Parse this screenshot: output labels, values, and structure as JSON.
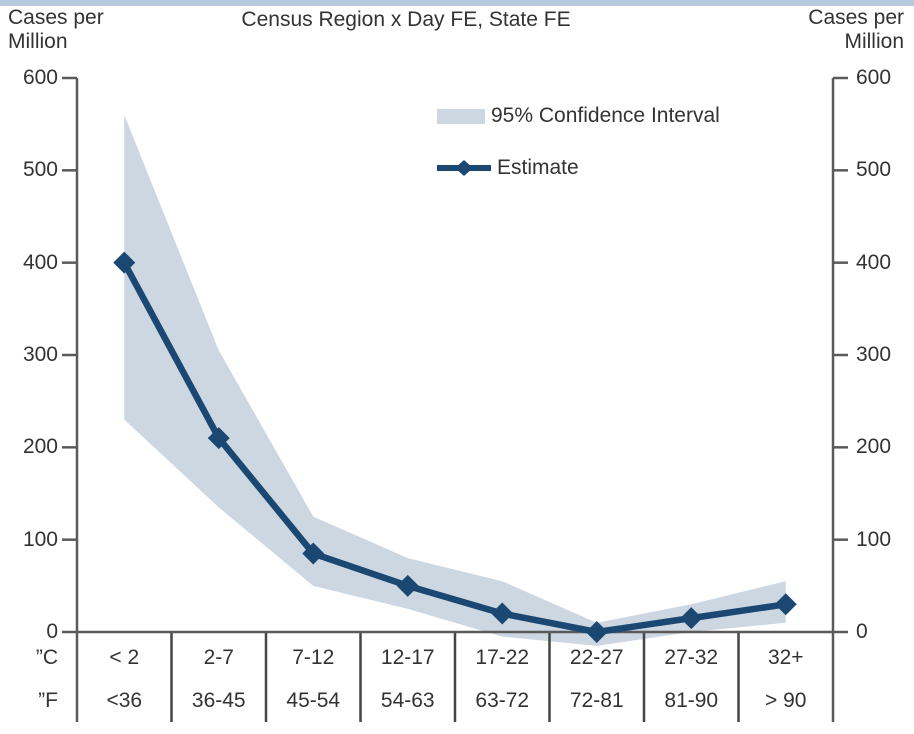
{
  "header": {
    "ylabel_left_line1": "Cases per",
    "ylabel_left_line2": "Million",
    "ylabel_right_line1": "Cases per",
    "ylabel_right_line2": "Million",
    "title": "Census Region x Day FE, State FE"
  },
  "legend": {
    "ci_label": "95% Confidence Interval",
    "estimate_label": "Estimate"
  },
  "colors": {
    "band": "#cdd7e1",
    "line": "#1b4872",
    "axis": "#5a5a5a",
    "divider": "#454545",
    "text": "#333333",
    "top_strip": "#b7cbdf"
  },
  "chart_data": {
    "type": "line",
    "title": "Census Region x Day FE, State FE",
    "ylabel_left": "Cases per Million",
    "ylabel_right": "Cases per Million",
    "ylim": [
      0,
      600
    ],
    "yticks": [
      600,
      500,
      400,
      300,
      200,
      100,
      0
    ],
    "grid": false,
    "legend_position": "top-right-inside",
    "x_row_label_c": "”C",
    "x_row_label_f": "”F",
    "categories_c": [
      "< 2",
      "2-7",
      "7-12",
      "12-17",
      "17-22",
      "22-27",
      "27-32",
      "32+"
    ],
    "categories_f": [
      "<36",
      "36-45",
      "45-54",
      "54-63",
      "63-72",
      "72-81",
      "81-90",
      "> 90"
    ],
    "series": [
      {
        "name": "Estimate",
        "type": "line-diamond",
        "values": [
          400,
          210,
          85,
          50,
          20,
          0,
          15,
          30
        ]
      },
      {
        "name": "95% Confidence Interval",
        "type": "band",
        "lower": [
          230,
          135,
          50,
          25,
          -5,
          -15,
          0,
          10
        ],
        "upper": [
          560,
          305,
          125,
          80,
          55,
          10,
          30,
          55
        ]
      }
    ]
  }
}
